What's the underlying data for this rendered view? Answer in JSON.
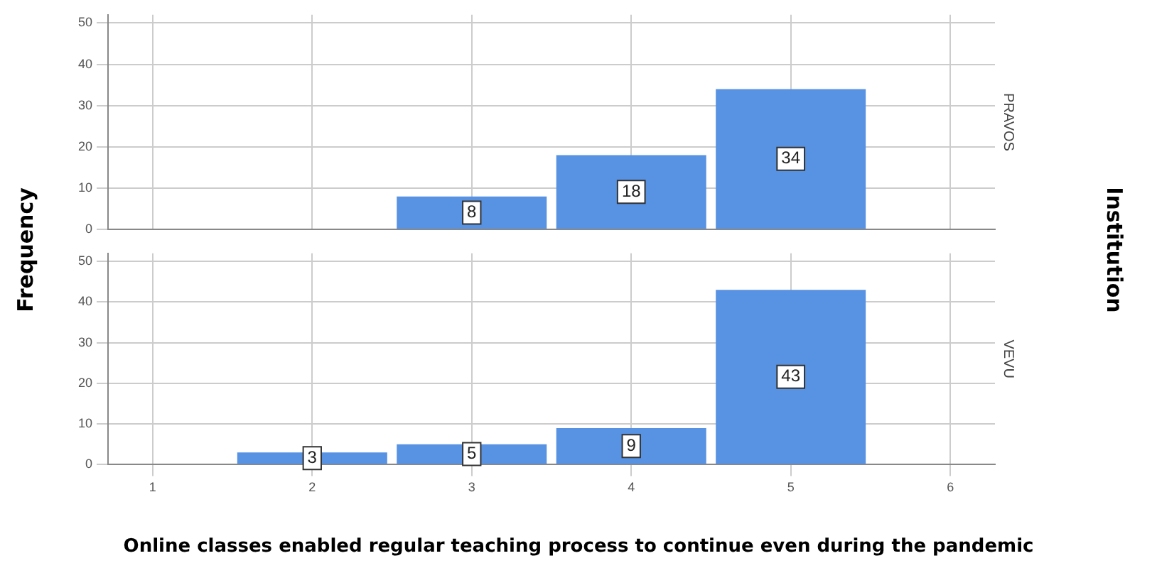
{
  "chart_data": [
    {
      "type": "bar",
      "title": "PRAVOS",
      "ylabel": "Frequency",
      "y2label": "Institution",
      "x": [
        3,
        4,
        5
      ],
      "values": [
        8,
        18,
        34
      ],
      "color": "#5892e2",
      "xlim": [
        0.72,
        6.28
      ],
      "xticks": [
        1,
        2,
        3,
        4,
        5,
        6
      ],
      "ylim": [
        0,
        52
      ],
      "yticks": [
        0,
        10,
        20,
        30,
        40,
        50
      ],
      "grid": true,
      "data_labels": true,
      "tick_labels": "y"
    },
    {
      "type": "bar",
      "title": "VEVU",
      "xlabel": "Online classes enabled regular teaching process to continue even during the pandemic",
      "x": [
        2,
        3,
        4,
        5
      ],
      "values": [
        3,
        5,
        9,
        43
      ],
      "color": "#5892e2",
      "xlim": [
        0.72,
        6.28
      ],
      "xticks": [
        1,
        2,
        3,
        4,
        5,
        6
      ],
      "ylim": [
        0,
        52
      ],
      "yticks": [
        0,
        10,
        20,
        30,
        40,
        50
      ],
      "grid": true,
      "data_labels": true
    }
  ]
}
